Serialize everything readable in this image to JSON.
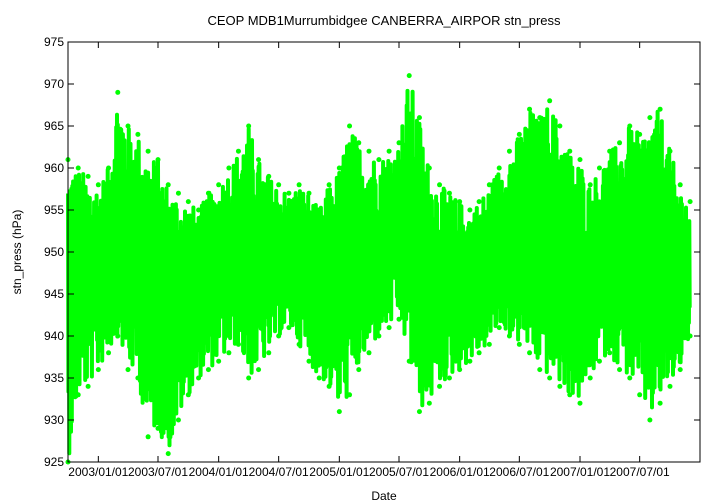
{
  "chart_data": {
    "type": "scatter",
    "title": "CEOP MDB1Murrumbidgee CANBERRA_AIRPOR  stn_press",
    "xlabel": "Date",
    "ylabel": "stn_press (hPa)",
    "xlim": [
      "2002-10-01",
      "2007-12-31"
    ],
    "ylim": [
      925,
      975
    ],
    "x_ticks": [
      "2003/01/01",
      "2003/07/01",
      "2004/01/01",
      "2004/07/01",
      "2005/01/01",
      "2005/07/01",
      "2006/01/01",
      "2006/07/01",
      "2007/01/01",
      "2007/07/01"
    ],
    "y_ticks": [
      925,
      930,
      935,
      940,
      945,
      950,
      955,
      960,
      965,
      970,
      975
    ],
    "grid": false,
    "legend": "none",
    "series": [
      {
        "color": "#00ff00",
        "note_range": "approximate envelope of dense station pressure trace",
        "x": [
          "2002-10-01",
          "2002-11-01",
          "2002-12-01",
          "2003-01-01",
          "2003-02-01",
          "2003-03-01",
          "2003-04-01",
          "2003-05-01",
          "2003-06-01",
          "2003-07-01",
          "2003-08-01",
          "2003-09-01",
          "2003-10-01",
          "2003-11-01",
          "2003-12-01",
          "2004-01-01",
          "2004-02-01",
          "2004-03-01",
          "2004-04-01",
          "2004-05-01",
          "2004-06-01",
          "2004-07-01",
          "2004-08-01",
          "2004-09-01",
          "2004-10-01",
          "2004-11-01",
          "2004-12-01",
          "2005-01-01",
          "2005-02-01",
          "2005-03-01",
          "2005-04-01",
          "2005-05-01",
          "2005-06-01",
          "2005-07-01",
          "2005-08-01",
          "2005-09-01",
          "2005-10-01",
          "2005-11-01",
          "2005-12-01",
          "2006-01-01",
          "2006-02-01",
          "2006-03-01",
          "2006-04-01",
          "2006-05-01",
          "2006-06-01",
          "2006-07-01",
          "2006-08-01",
          "2006-09-01",
          "2006-10-01",
          "2006-11-01",
          "2006-12-01",
          "2007-01-01",
          "2007-02-01",
          "2007-03-01",
          "2007-04-01",
          "2007-05-01",
          "2007-06-01",
          "2007-07-01",
          "2007-08-01",
          "2007-09-01",
          "2007-10-01",
          "2007-11-01",
          "2007-12-01"
        ],
        "max": [
          961,
          960,
          959,
          958,
          960,
          969,
          965,
          964,
          962,
          961,
          958,
          957,
          956,
          955,
          957,
          958,
          960,
          962,
          965,
          961,
          959,
          958,
          957,
          958,
          957,
          955,
          958,
          960,
          965,
          963,
          962,
          961,
          962,
          963,
          971,
          966,
          960,
          958,
          957,
          956,
          955,
          956,
          958,
          960,
          962,
          964,
          967,
          966,
          968,
          965,
          962,
          961,
          958,
          960,
          962,
          963,
          965,
          964,
          966,
          967,
          962,
          958,
          956
        ],
        "min": [
          925,
          933,
          934,
          936,
          938,
          940,
          936,
          935,
          928,
          929,
          926,
          930,
          933,
          935,
          936,
          937,
          938,
          939,
          935,
          936,
          938,
          940,
          941,
          939,
          937,
          935,
          934,
          931,
          933,
          936,
          938,
          940,
          941,
          942,
          937,
          931,
          932,
          934,
          935,
          936,
          937,
          938,
          939,
          941,
          940,
          939,
          938,
          936,
          935,
          934,
          933,
          932,
          935,
          937,
          938,
          936,
          935,
          933,
          930,
          932,
          934,
          936,
          940
        ]
      }
    ]
  }
}
